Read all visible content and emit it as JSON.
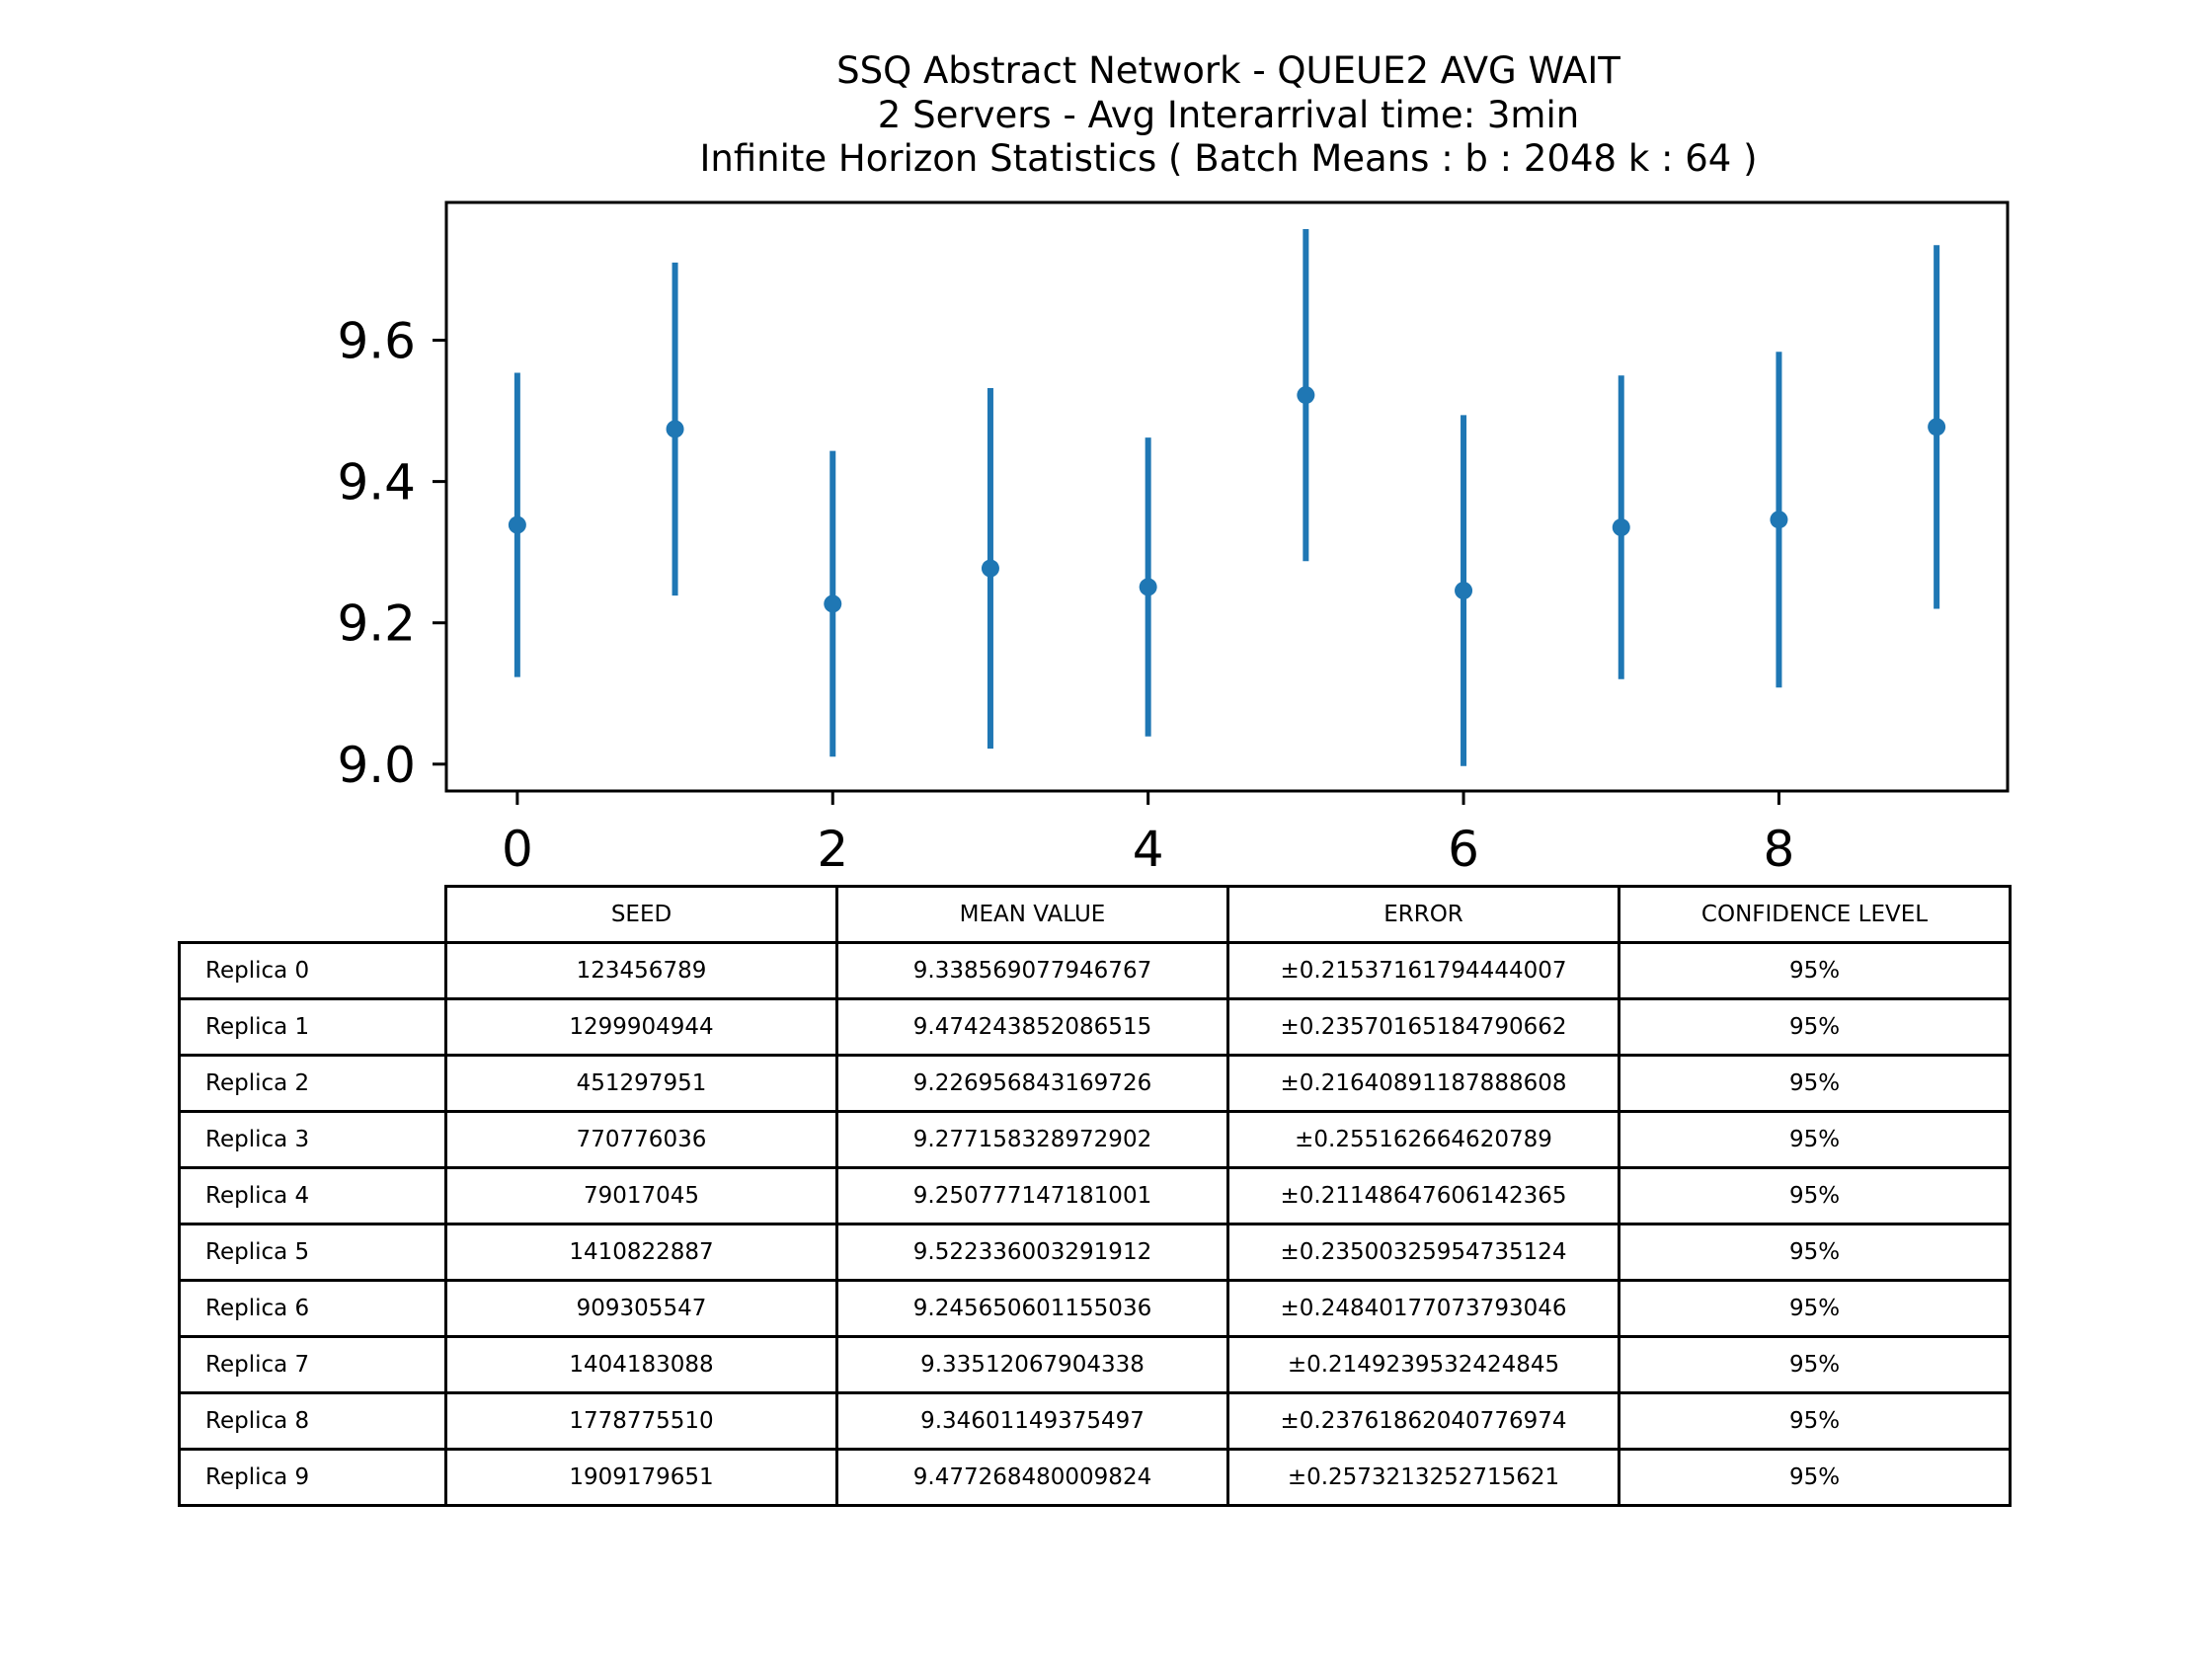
{
  "chart_data": {
    "type": "scatter",
    "title_lines": [
      "SSQ Abstract Network - QUEUE2 AVG WAIT",
      "2 Servers -  Avg Interarrival time: 3min",
      "Infinite Horizon Statistics ( Batch Means : b : 2048  k : 64 )"
    ],
    "xlabel": "",
    "ylabel": "",
    "xlim": [
      -0.45,
      9.45
    ],
    "ylim": [
      8.962,
      9.795
    ],
    "x_ticks": [
      "0",
      "2",
      "4",
      "6",
      "8"
    ],
    "y_ticks": [
      "9.0",
      "9.2",
      "9.4",
      "9.6"
    ],
    "grid": false,
    "x": [
      0,
      1,
      2,
      3,
      4,
      5,
      6,
      7,
      8,
      9
    ],
    "y": [
      9.338569077946767,
      9.474243852086515,
      9.226956843169726,
      9.277158328972902,
      9.250777147181001,
      9.522336003291912,
      9.245650601155036,
      9.33512067904338,
      9.34601149375497,
      9.477268480009824
    ],
    "errors": [
      0.21537161794444007,
      0.23570165184790662,
      0.21640891187888608,
      0.255162664620789,
      0.21148647606142365,
      0.23500325954735124,
      0.24840177073793046,
      0.2149239532424845,
      0.23761862040776974,
      0.2573213252715621
    ],
    "color": "#1f77b4"
  },
  "table": {
    "columns": [
      "SEED",
      "MEAN VALUE",
      "ERROR",
      "CONFIDENCE LEVEL"
    ],
    "rows": [
      {
        "label": "Replica 0",
        "cells": [
          "123456789",
          "9.338569077946767",
          "±0.21537161794444007",
          "95%"
        ]
      },
      {
        "label": "Replica 1",
        "cells": [
          "1299904944",
          "9.474243852086515",
          "±0.23570165184790662",
          "95%"
        ]
      },
      {
        "label": "Replica 2",
        "cells": [
          "451297951",
          "9.226956843169726",
          "±0.21640891187888608",
          "95%"
        ]
      },
      {
        "label": "Replica 3",
        "cells": [
          "770776036",
          "9.277158328972902",
          "±0.255162664620789",
          "95%"
        ]
      },
      {
        "label": "Replica 4",
        "cells": [
          "79017045",
          "9.250777147181001",
          "±0.21148647606142365",
          "95%"
        ]
      },
      {
        "label": "Replica 5",
        "cells": [
          "1410822887",
          "9.522336003291912",
          "±0.23500325954735124",
          "95%"
        ]
      },
      {
        "label": "Replica 6",
        "cells": [
          "909305547",
          "9.245650601155036",
          "±0.24840177073793046",
          "95%"
        ]
      },
      {
        "label": "Replica 7",
        "cells": [
          "1404183088",
          "9.33512067904338",
          "±0.2149239532424845",
          "95%"
        ]
      },
      {
        "label": "Replica 8",
        "cells": [
          "1778775510",
          "9.34601149375497",
          "±0.23761862040776974",
          "95%"
        ]
      },
      {
        "label": "Replica 9",
        "cells": [
          "1909179651",
          "9.477268480009824",
          "±0.2573213252715621",
          "95%"
        ]
      }
    ]
  }
}
